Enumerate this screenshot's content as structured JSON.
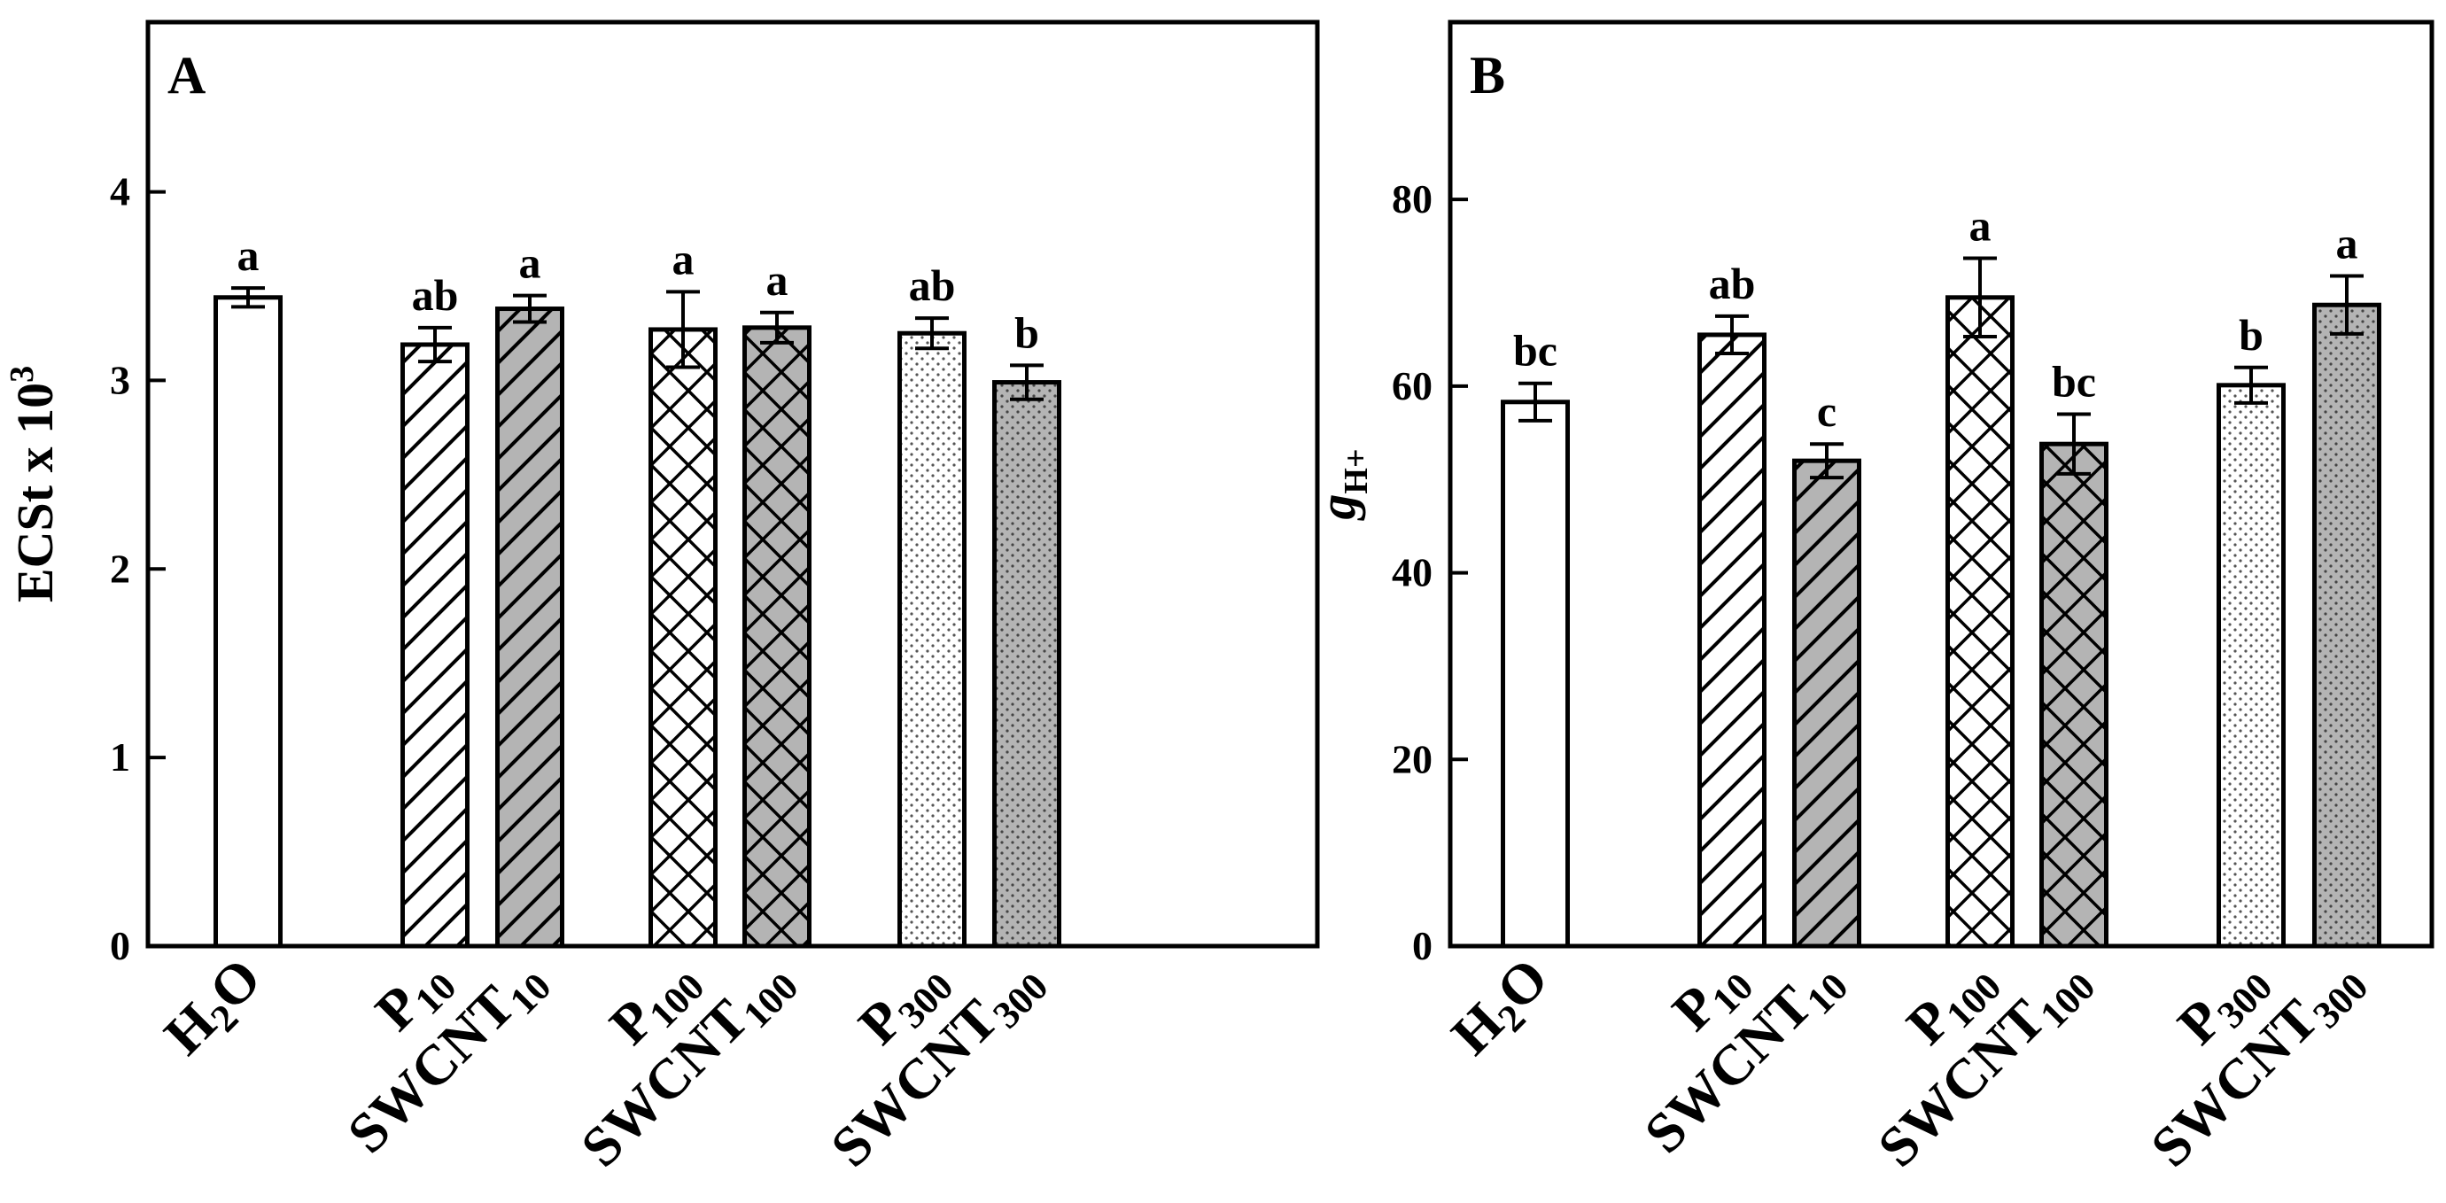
{
  "chart_data": [
    {
      "type": "bar",
      "panel": "A",
      "ylabel": "ECSt x 10",
      "ylabel_sup": "3",
      "ylim": [
        0,
        4.9
      ],
      "yticks": [
        0,
        1,
        2,
        3,
        4
      ],
      "categories": [
        {
          "main": "H",
          "sub": "2",
          "tail": "O"
        },
        {
          "main": "P",
          "sub": "10",
          "tail": ""
        },
        {
          "main": "SWCNT",
          "sub": "10",
          "tail": ""
        },
        {
          "main": "P",
          "sub": "100",
          "tail": ""
        },
        {
          "main": "SWCNT",
          "sub": "100",
          "tail": ""
        },
        {
          "main": "P",
          "sub": "300",
          "tail": ""
        },
        {
          "main": "SWCNT",
          "sub": "300",
          "tail": ""
        }
      ],
      "values": [
        3.44,
        3.19,
        3.38,
        3.27,
        3.28,
        3.25,
        2.99
      ],
      "errors": [
        0.05,
        0.09,
        0.07,
        0.2,
        0.08,
        0.08,
        0.09
      ],
      "significance": [
        "a",
        "ab",
        "a",
        "a",
        "a",
        "ab",
        "b"
      ],
      "fills": [
        "none",
        "diag",
        "diag",
        "cross",
        "cross",
        "dots",
        "dots"
      ],
      "shaded": [
        false,
        false,
        true,
        false,
        true,
        false,
        true
      ],
      "grid": false
    },
    {
      "type": "bar",
      "panel": "B",
      "ylabel": "g",
      "ylabel_sub": "H+",
      "ylim": [
        0,
        99
      ],
      "yticks": [
        0,
        20,
        40,
        60,
        80
      ],
      "categories": [
        {
          "main": "H",
          "sub": "2",
          "tail": "O"
        },
        {
          "main": "P",
          "sub": "10",
          "tail": ""
        },
        {
          "main": "SWCNT",
          "sub": "10",
          "tail": ""
        },
        {
          "main": "P",
          "sub": "100",
          "tail": ""
        },
        {
          "main": "SWCNT",
          "sub": "100",
          "tail": ""
        },
        {
          "main": "P",
          "sub": "300",
          "tail": ""
        },
        {
          "main": "SWCNT",
          "sub": "300",
          "tail": ""
        }
      ],
      "values": [
        58.3,
        65.5,
        52.0,
        69.5,
        53.8,
        60.1,
        68.7
      ],
      "errors": [
        2.0,
        2.0,
        1.8,
        4.2,
        3.2,
        1.9,
        3.1
      ],
      "significance": [
        "bc",
        "ab",
        "c",
        "a",
        "bc",
        "b",
        "a"
      ],
      "fills": [
        "none",
        "diag",
        "diag",
        "cross",
        "cross",
        "dots",
        "dots"
      ],
      "shaded": [
        false,
        false,
        true,
        false,
        true,
        false,
        true
      ],
      "grid": false
    }
  ]
}
